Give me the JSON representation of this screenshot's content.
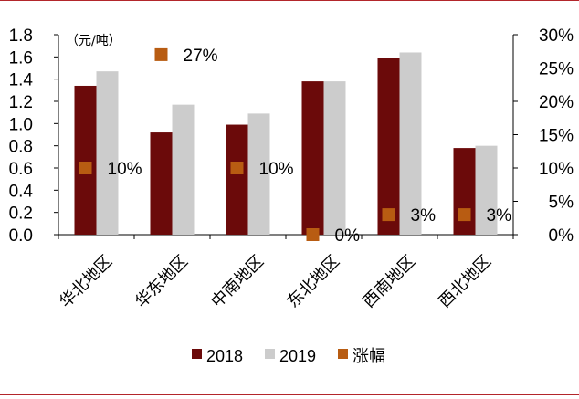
{
  "chart_data": {
    "type": "bar",
    "unit_label": "（元/吨）",
    "categories": [
      "华北地区",
      "华东地区",
      "中南地区",
      "东北地区",
      "西南地区",
      "西北地区"
    ],
    "series": [
      {
        "name": "2018",
        "color": "#6b0a0a",
        "values": [
          1.34,
          0.92,
          0.99,
          1.38,
          1.59,
          0.78
        ]
      },
      {
        "name": "2019",
        "color": "#cccccc",
        "values": [
          1.47,
          1.17,
          1.09,
          1.38,
          1.64,
          0.8
        ]
      }
    ],
    "secondary_series": {
      "name": "涨幅",
      "type": "scatter",
      "color": "#b85c12",
      "values": [
        10,
        27,
        10,
        0,
        3,
        3
      ],
      "labels": [
        "10%",
        "27%",
        "10%",
        "0%",
        "3%",
        "3%"
      ]
    },
    "y_left": {
      "min": 0,
      "max": 1.8,
      "step": 0.2,
      "ticks": [
        "0.0",
        "0.2",
        "0.4",
        "0.6",
        "0.8",
        "1.0",
        "1.2",
        "1.4",
        "1.6",
        "1.8"
      ]
    },
    "y_right": {
      "min": 0,
      "max": 30,
      "step": 5,
      "ticks": [
        "0%",
        "5%",
        "10%",
        "15%",
        "20%",
        "25%",
        "30%"
      ]
    },
    "legend": [
      "2018",
      "2019",
      "涨幅"
    ],
    "legend_position": "bottom"
  }
}
